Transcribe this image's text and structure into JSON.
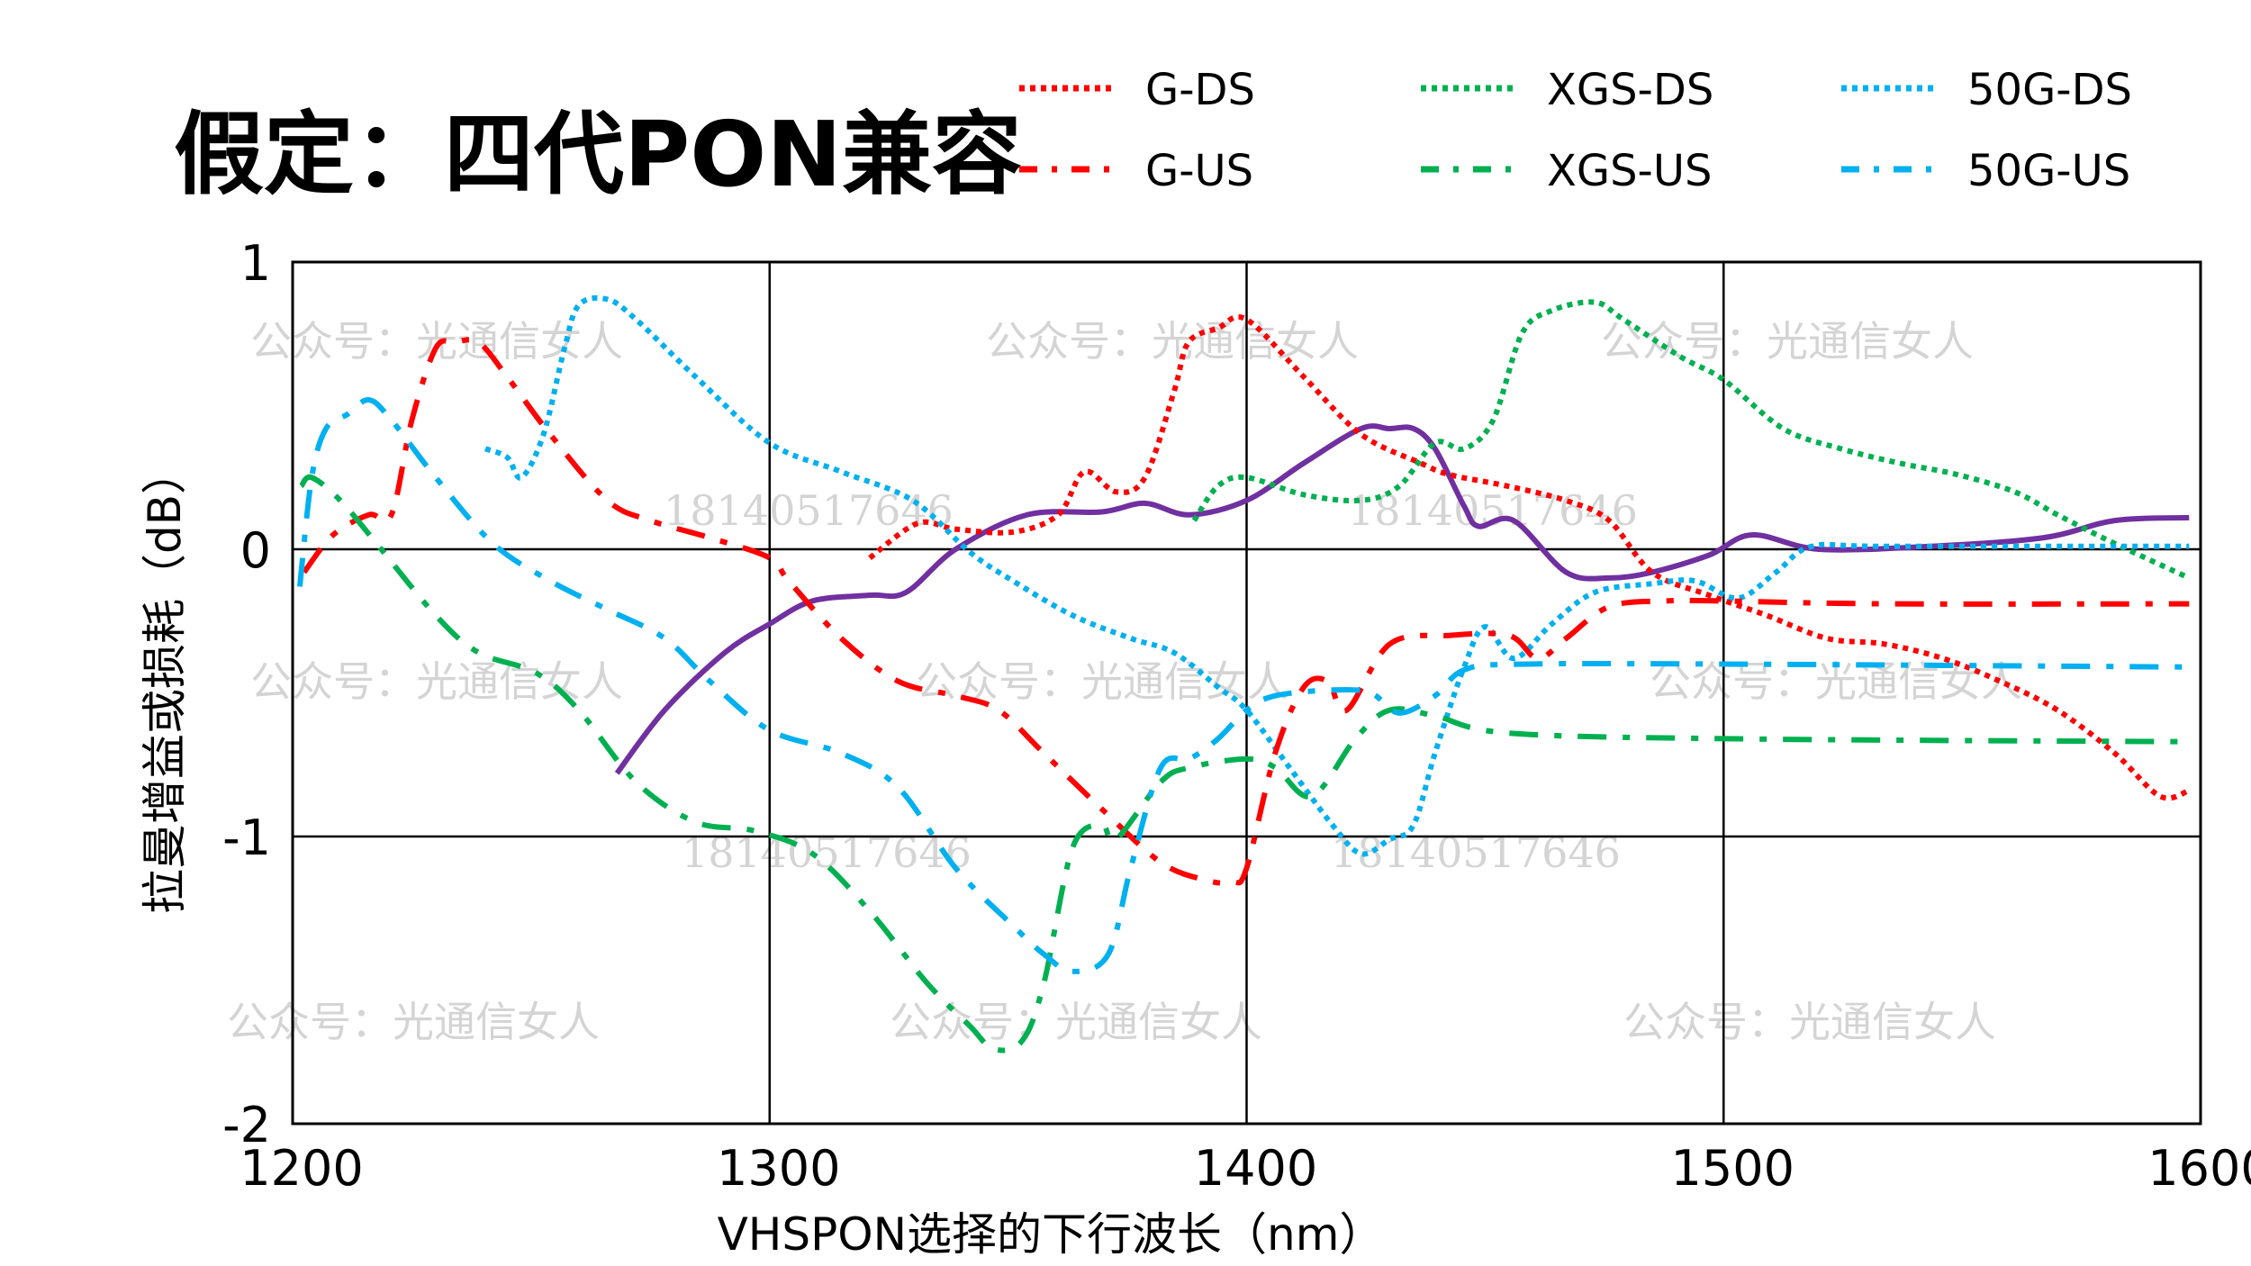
{
  "title": "假定：四代PON兼容",
  "watermarks": {
    "account": "公众号：光通信女人",
    "phone": "18140517646"
  },
  "chart_data": {
    "type": "line",
    "title": "假定：四代PON兼容",
    "xlabel": "VHSPON选择的下行波长（nm）",
    "ylabel": "拉曼增益或损耗（dB）",
    "xlim": [
      1200,
      1600
    ],
    "ylim": [
      -2,
      1
    ],
    "xticks": [
      "1200",
      "1300",
      "1400",
      "1500",
      "1600"
    ],
    "yticks": [
      "1",
      "0",
      "-1",
      "-2"
    ],
    "xtick_values": [
      1200,
      1300,
      1400,
      1500,
      1600
    ],
    "ytick_values": [
      1,
      0,
      -1,
      -2
    ],
    "grid": true,
    "legend_position": "top-right",
    "series": [
      {
        "name": "G-DS",
        "color": "#FF0000",
        "style": "dotted",
        "x": [
          1321,
          1331,
          1339,
          1351,
          1360.5,
          1366,
          1372.6,
          1378.7,
          1384.8,
          1387.8,
          1394,
          1400,
          1412,
          1424,
          1436.5,
          1442.5,
          1454.7,
          1466.9,
          1476,
          1485,
          1497,
          1509,
          1521.6,
          1533.7,
          1546,
          1558,
          1570,
          1582,
          1591.5,
          1597.6
        ],
        "y": [
          -0.03,
          0.09,
          0.07,
          0.06,
          0.12,
          0.27,
          0.2,
          0.25,
          0.55,
          0.72,
          0.77,
          0.8,
          0.6,
          0.4,
          0.3,
          0.26,
          0.22,
          0.17,
          0.1,
          -0.08,
          -0.16,
          -0.23,
          -0.31,
          -0.33,
          -0.38,
          -0.46,
          -0.56,
          -0.71,
          -0.86,
          -0.84
        ]
      },
      {
        "name": "XGS-DS",
        "color": "#00B050",
        "style": "dotted",
        "x": [
          1389,
          1394,
          1400,
          1412,
          1424,
          1432,
          1439.5,
          1445.6,
          1451.7,
          1457.7,
          1463.8,
          1473,
          1479,
          1491,
          1500,
          1512.5,
          1524.6,
          1536.8,
          1549,
          1561,
          1570,
          1582,
          1597.6
        ],
        "y": [
          0.1,
          0.22,
          0.25,
          0.19,
          0.17,
          0.22,
          0.37,
          0.35,
          0.45,
          0.75,
          0.83,
          0.86,
          0.8,
          0.67,
          0.59,
          0.42,
          0.35,
          0.3,
          0.26,
          0.2,
          0.12,
          0.02,
          -0.1
        ]
      },
      {
        "name": "50G-DS",
        "color": "#00B0F0",
        "style": "dotted",
        "x": [
          1240.4,
          1245,
          1248,
          1252.6,
          1257,
          1260,
          1266,
          1272,
          1284.5,
          1300,
          1315,
          1330,
          1342,
          1351,
          1363.5,
          1375.7,
          1384.8,
          1394,
          1400,
          1409,
          1418,
          1424,
          1430,
          1435,
          1439.5,
          1445.6,
          1450,
          1456,
          1464,
          1473,
          1485,
          1494,
          1503,
          1511,
          1518.5,
          1534,
          1597.6
        ],
        "y": [
          0.35,
          0.32,
          0.25,
          0.4,
          0.7,
          0.85,
          0.87,
          0.8,
          0.6,
          0.37,
          0.27,
          0.17,
          -0.01,
          -0.11,
          -0.23,
          -0.31,
          -0.36,
          -0.48,
          -0.56,
          -0.76,
          -0.96,
          -1.06,
          -1.01,
          -0.96,
          -0.71,
          -0.41,
          -0.27,
          -0.38,
          -0.26,
          -0.15,
          -0.12,
          -0.11,
          -0.17,
          -0.08,
          0.01,
          0.01,
          0.01
        ]
      },
      {
        "name": "G-US",
        "color": "#FF0000",
        "style": "dashdot",
        "x": [
          1202.4,
          1208.5,
          1216,
          1220.7,
          1225,
          1230,
          1234,
          1239,
          1245,
          1254,
          1266,
          1275,
          1287.5,
          1300,
          1304,
          1315,
          1327,
          1339,
          1348,
          1357.5,
          1370,
          1382,
          1391,
          1397,
          1400,
          1406,
          1412,
          1417,
          1421,
          1430,
          1442.5,
          1455,
          1461,
          1467,
          1476,
          1488,
          1500,
          1534,
          1597.6
        ],
        "y": [
          -0.08,
          0.05,
          0.12,
          0.12,
          0.45,
          0.7,
          0.72,
          0.72,
          0.6,
          0.4,
          0.17,
          0.1,
          0.04,
          -0.03,
          -0.11,
          -0.31,
          -0.46,
          -0.51,
          -0.56,
          -0.71,
          -0.91,
          -1.09,
          -1.15,
          -1.16,
          -1.11,
          -0.71,
          -0.48,
          -0.46,
          -0.56,
          -0.33,
          -0.3,
          -0.3,
          -0.38,
          -0.31,
          -0.2,
          -0.18,
          -0.18,
          -0.19,
          -0.19
        ]
      },
      {
        "name": "XGS-US",
        "color": "#00B050",
        "style": "dashdot",
        "x": [
          1201.8,
          1204,
          1210,
          1217.6,
          1230,
          1239,
          1251,
          1260,
          1272,
          1284.5,
          1296.7,
          1309,
          1321,
          1333,
          1342,
          1347,
          1353,
          1357.5,
          1363.5,
          1369.6,
          1372.6,
          1382,
          1388,
          1400,
          1406,
          1413.7,
          1422.8,
          1430,
          1439.5,
          1455,
          1503,
          1597.6
        ],
        "y": [
          0.22,
          0.25,
          0.17,
          0.02,
          -0.23,
          -0.36,
          -0.43,
          -0.56,
          -0.81,
          -0.95,
          -0.98,
          -1.06,
          -1.26,
          -1.51,
          -1.66,
          -1.74,
          -1.71,
          -1.51,
          -1.04,
          -0.96,
          -1.01,
          -0.81,
          -0.76,
          -0.73,
          -0.76,
          -0.86,
          -0.66,
          -0.56,
          -0.58,
          -0.64,
          -0.66,
          -0.67
        ]
      },
      {
        "name": "50G-US",
        "color": "#00B0F0",
        "style": "dashdot",
        "x": [
          1201.5,
          1204,
          1207,
          1211.5,
          1216,
          1220.7,
          1230,
          1242,
          1254,
          1266,
          1278,
          1287.5,
          1300,
          1315,
          1327,
          1339,
          1351,
          1357.5,
          1363.5,
          1371,
          1375.7,
          1382,
          1388,
          1394,
          1400,
          1406,
          1418,
          1426,
          1432,
          1439.5,
          1445.6,
          1457.7,
          1503,
          1597.6
        ],
        "y": [
          -0.13,
          0.25,
          0.42,
          0.47,
          0.52,
          0.45,
          0.25,
          0.02,
          -0.11,
          -0.21,
          -0.31,
          -0.46,
          -0.63,
          -0.71,
          -0.83,
          -1.11,
          -1.31,
          -1.41,
          -1.47,
          -1.41,
          -1.11,
          -0.76,
          -0.73,
          -0.66,
          -0.56,
          -0.51,
          -0.49,
          -0.5,
          -0.57,
          -0.51,
          -0.42,
          -0.4,
          -0.4,
          -0.41
        ]
      },
      {
        "name": "VHSPON",
        "color": "#7030A0",
        "style": "solid",
        "in_legend": false,
        "x": [
          1268,
          1278,
          1290.6,
          1300,
          1309,
          1321,
          1328.6,
          1339,
          1354,
          1369.6,
          1378.7,
          1388,
          1400,
          1412,
          1424,
          1430,
          1435,
          1439.5,
          1445.6,
          1448.6,
          1456,
          1467,
          1476,
          1485,
          1497,
          1506,
          1520,
          1543,
          1567,
          1582,
          1597.6
        ],
        "y": [
          -0.78,
          -0.56,
          -0.36,
          -0.26,
          -0.18,
          -0.16,
          -0.15,
          0.0,
          0.12,
          0.13,
          0.16,
          0.12,
          0.17,
          0.3,
          0.42,
          0.42,
          0.42,
          0.35,
          0.15,
          0.08,
          0.1,
          -0.08,
          -0.1,
          -0.08,
          -0.02,
          0.05,
          0.0,
          0.01,
          0.04,
          0.1,
          0.11
        ]
      }
    ]
  }
}
